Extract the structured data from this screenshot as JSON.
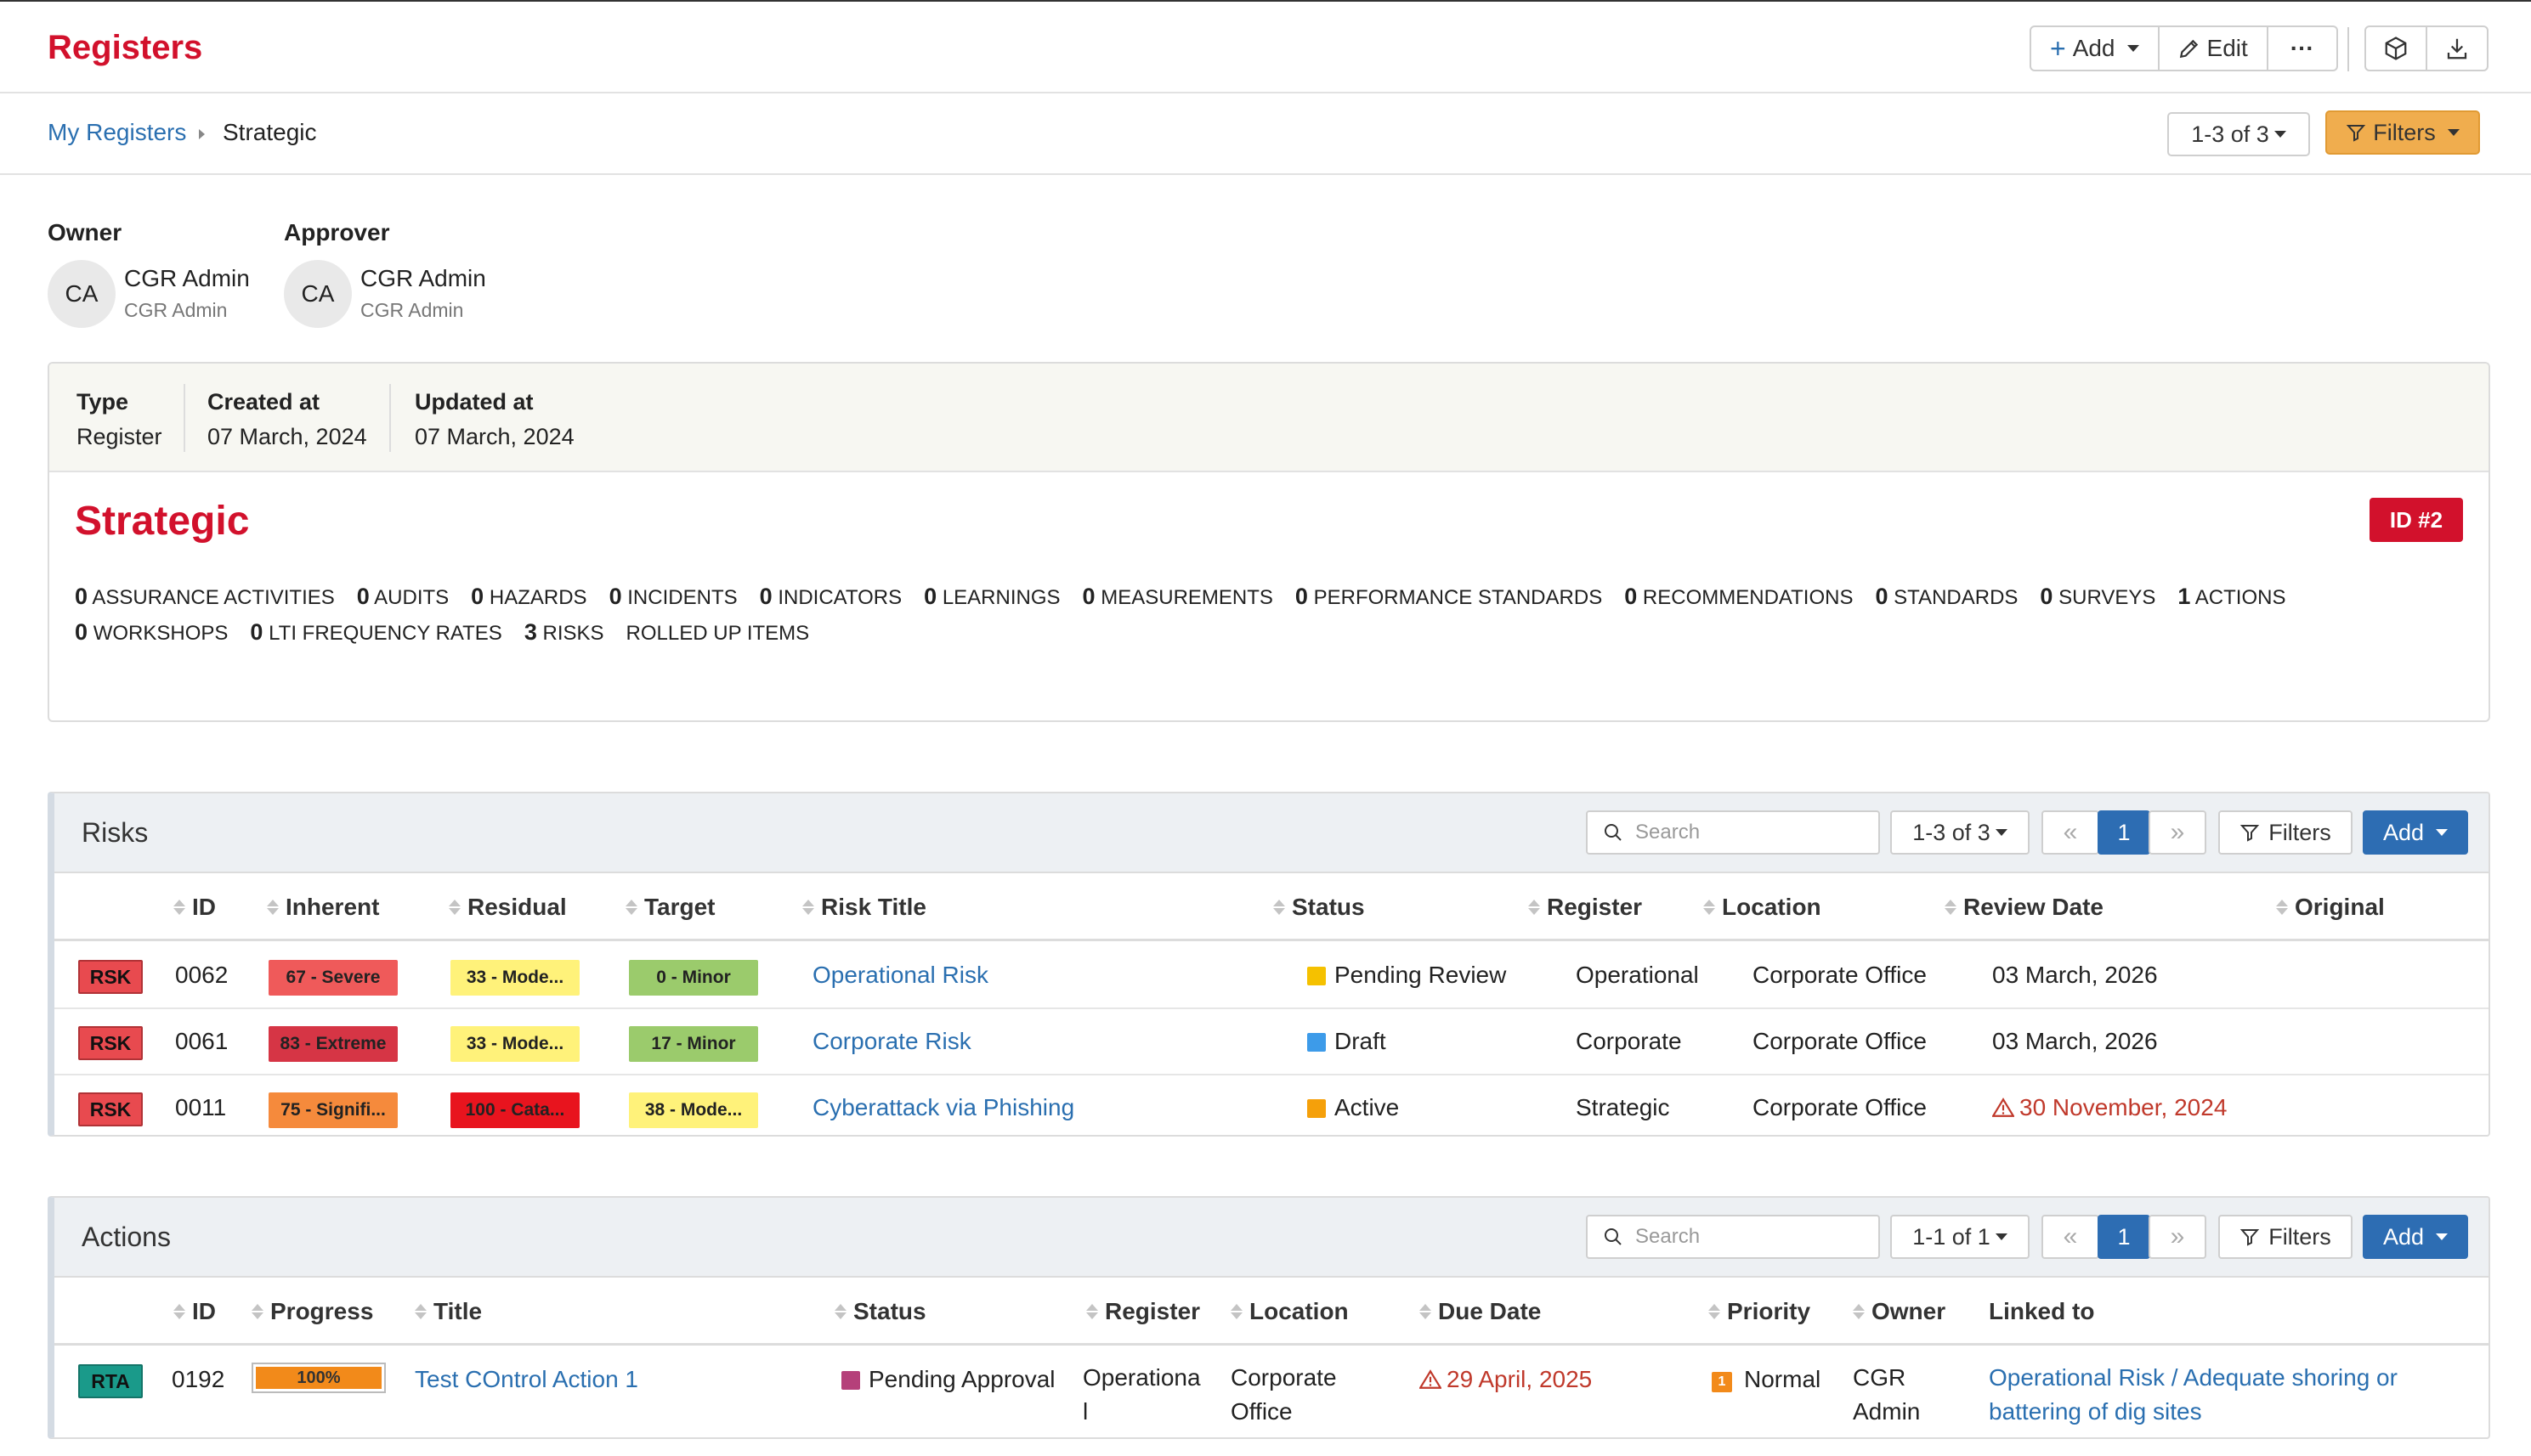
{
  "header": {
    "title": "Registers",
    "add_label": "Add",
    "edit_label": "Edit",
    "more_label": "···"
  },
  "breadcrumb": {
    "root": "My Registers",
    "current": "Strategic"
  },
  "top_pager": {
    "range": "1-3 of 3"
  },
  "top_filters_label": "Filters",
  "owner": {
    "label": "Owner",
    "initials": "CA",
    "name": "CGR Admin",
    "sub": "CGR Admin"
  },
  "approver": {
    "label": "Approver",
    "initials": "CA",
    "name": "CGR Admin",
    "sub": "CGR Admin"
  },
  "meta": [
    {
      "key": "Type",
      "value": "Register"
    },
    {
      "key": "Created at",
      "value": "07 March, 2024"
    },
    {
      "key": "Updated at",
      "value": "07 March, 2024"
    }
  ],
  "register": {
    "title": "Strategic",
    "id_badge": "ID #2",
    "counts": [
      {
        "n": "0",
        "label": "ASSURANCE ACTIVITIES"
      },
      {
        "n": "0",
        "label": "AUDITS"
      },
      {
        "n": "0",
        "label": "HAZARDS"
      },
      {
        "n": "0",
        "label": "INCIDENTS"
      },
      {
        "n": "0",
        "label": "INDICATORS"
      },
      {
        "n": "0",
        "label": "LEARNINGS"
      },
      {
        "n": "0",
        "label": "MEASUREMENTS"
      },
      {
        "n": "0",
        "label": "PERFORMANCE STANDARDS"
      },
      {
        "n": "0",
        "label": "RECOMMENDATIONS"
      },
      {
        "n": "0",
        "label": "STANDARDS"
      },
      {
        "n": "0",
        "label": "SURVEYS"
      },
      {
        "n": "1",
        "label": "ACTIONS"
      },
      {
        "n": "0",
        "label": "WORKSHOPS"
      },
      {
        "n": "0",
        "label": "LTI FREQUENCY RATES"
      },
      {
        "n": "3",
        "label": "RISKS"
      },
      {
        "n": "",
        "label": "ROLLED UP ITEMS"
      }
    ]
  },
  "risks": {
    "title": "Risks",
    "search_placeholder": "Search",
    "range": "1-3 of 3",
    "page": "1",
    "prev": "«",
    "next": "»",
    "filters_label": "Filters",
    "add_label": "Add",
    "columns": [
      "ID",
      "Inherent",
      "Residual",
      "Target",
      "Risk Title",
      "Status",
      "Register",
      "Location",
      "Review Date",
      "Original"
    ],
    "rows": [
      {
        "tag": "RSK",
        "id": "0062",
        "inherent": {
          "label": "67 - Severe",
          "color": "#ef5a5a"
        },
        "residual": {
          "label": "33 - Mode...",
          "color": "#fff27a"
        },
        "target": {
          "label": "0 - Minor",
          "color": "#9bcb6c"
        },
        "title": "Operational Risk",
        "status": {
          "label": "Pending Review",
          "color": "#f5c100"
        },
        "register": "Operational",
        "location": "Corporate Office",
        "review_date": "03 March, 2026",
        "overdue": false
      },
      {
        "tag": "RSK",
        "id": "0061",
        "inherent": {
          "label": "83 - Extreme",
          "color": "#d63545"
        },
        "residual": {
          "label": "33 - Mode...",
          "color": "#fff27a"
        },
        "target": {
          "label": "17 - Minor",
          "color": "#9bcb6c"
        },
        "title": "Corporate Risk",
        "status": {
          "label": "Draft",
          "color": "#3d9be9"
        },
        "register": "Corporate",
        "location": "Corporate Office",
        "review_date": "03 March, 2026",
        "overdue": false
      },
      {
        "tag": "RSK",
        "id": "0011",
        "inherent": {
          "label": "75 - Signifi...",
          "color": "#f58a3c"
        },
        "residual": {
          "label": "100 - Cata...",
          "color": "#e8141e"
        },
        "target": {
          "label": "38 - Mode...",
          "color": "#fff27a"
        },
        "title": "Cyberattack via Phishing",
        "status": {
          "label": "Active",
          "color": "#f5a00a"
        },
        "register": "Strategic",
        "location": "Corporate Office",
        "review_date": "30 November, 2024",
        "overdue": true
      }
    ]
  },
  "actions": {
    "title": "Actions",
    "search_placeholder": "Search",
    "range": "1-1 of 1",
    "page": "1",
    "prev": "«",
    "next": "»",
    "filters_label": "Filters",
    "add_label": "Add",
    "columns": [
      "ID",
      "Progress",
      "Title",
      "Status",
      "Register",
      "Location",
      "Due Date",
      "Priority",
      "Owner",
      "Linked to"
    ],
    "rows": [
      {
        "tag": "RTA",
        "id": "0192",
        "progress": 100,
        "progress_label": "100%",
        "title": "Test COntrol Action 1",
        "status": {
          "label": "Pending Approval",
          "color": "#b5407a"
        },
        "register": "Operational",
        "location": "Corporate Office",
        "due_date": "29 April, 2025",
        "priority_num": "1",
        "priority": "Normal",
        "owner": "CGR Admin",
        "linked_to": "Operational Risk / Adequate shoring or battering of dig sites"
      }
    ]
  }
}
